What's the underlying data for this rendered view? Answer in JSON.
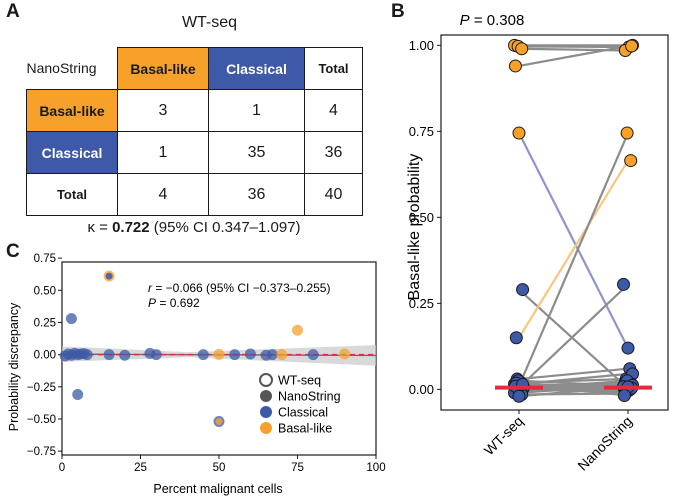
{
  "panels": {
    "a": "A",
    "b": "B",
    "c": "C"
  },
  "panel_a": {
    "column_title": "WT-seq",
    "row_title": "NanoString",
    "col_headers": [
      "Basal-like",
      "Classical",
      "Total"
    ],
    "rows": [
      {
        "label": "Basal-like",
        "values": [
          "3",
          "1",
          "4"
        ]
      },
      {
        "label": "Classical",
        "values": [
          "1",
          "35",
          "36"
        ]
      },
      {
        "label": "Total",
        "values": [
          "4",
          "36",
          "40"
        ]
      }
    ],
    "kappa_prefix": "κ = ",
    "kappa_value": "0.722",
    "kappa_ci": " (95% CI 0.347–1.097)"
  },
  "colors": {
    "basal": "#f7a12b",
    "classical": "#3d59a7",
    "mean_bar": "#e8283c",
    "refline": "#e8283c"
  },
  "chart_data": [
    {
      "id": "panel_b",
      "type": "scatter",
      "title": "P = 0.308",
      "title_p": "P",
      "title_rest": " = 0.308",
      "ylabel": "Basal-like probability",
      "categories": [
        "WT-seq",
        "NanoString"
      ],
      "ylim": [
        -0.06,
        1.03
      ],
      "yticks": [
        0,
        0.25,
        0.5,
        0.75,
        1
      ],
      "ytick_labels": [
        "0.00",
        "0.25",
        "0.50",
        "0.75",
        "1.00"
      ],
      "mean_values": [
        0.005,
        0.005
      ],
      "pairs": [
        {
          "wt": 1.0,
          "ns": 1.0,
          "line": "grey",
          "wt_type": "basal",
          "ns_type": "basal"
        },
        {
          "wt": 0.997,
          "ns": 0.995,
          "line": "grey",
          "wt_type": "basal",
          "ns_type": "basal"
        },
        {
          "wt": 0.99,
          "ns": 0.985,
          "line": "grey",
          "wt_type": "basal",
          "ns_type": "basal"
        },
        {
          "wt": 0.94,
          "ns": 0.998,
          "line": "grey",
          "wt_type": "basal",
          "ns_type": "basal"
        },
        {
          "wt": 0.745,
          "ns": 0.12,
          "line": "blue",
          "wt_type": "basal",
          "ns_type": "classical"
        },
        {
          "wt": 0.29,
          "ns": 0.003,
          "line": "grey",
          "wt_type": "classical",
          "ns_type": "classical"
        },
        {
          "wt": 0.15,
          "ns": 0.665,
          "line": "orange",
          "wt_type": "classical",
          "ns_type": "basal"
        },
        {
          "wt": 0.01,
          "ns": 0.745,
          "line": "grey",
          "wt_type": "classical",
          "ns_type": "basal"
        },
        {
          "wt": 0.005,
          "ns": 0.305,
          "line": "grey",
          "wt_type": "classical",
          "ns_type": "classical"
        },
        {
          "wt": 0.03,
          "ns": 0.06,
          "line": "grey",
          "wt_type": "classical",
          "ns_type": "classical"
        },
        {
          "wt": 0.02,
          "ns": 0.03,
          "line": "grey",
          "wt_type": "classical",
          "ns_type": "classical"
        },
        {
          "wt": 0.015,
          "ns": 0.045,
          "line": "grey",
          "wt_type": "classical",
          "ns_type": "classical"
        },
        {
          "wt": 0.025,
          "ns": 0.01,
          "line": "grey",
          "wt_type": "classical",
          "ns_type": "classical"
        },
        {
          "wt": 0.008,
          "ns": 0.02,
          "line": "grey",
          "wt_type": "classical",
          "ns_type": "classical"
        },
        {
          "wt": 0.004,
          "ns": 0.015,
          "line": "grey",
          "wt_type": "classical",
          "ns_type": "classical"
        },
        {
          "wt": 0.012,
          "ns": 0.005,
          "line": "grey",
          "wt_type": "classical",
          "ns_type": "classical"
        },
        {
          "wt": 0.001,
          "ns": 0.002,
          "line": "grey",
          "wt_type": "classical",
          "ns_type": "classical"
        },
        {
          "wt": 0.018,
          "ns": 0.001,
          "line": "grey",
          "wt_type": "classical",
          "ns_type": "classical"
        },
        {
          "wt": 0.002,
          "ns": 0.025,
          "line": "grey",
          "wt_type": "classical",
          "ns_type": "classical"
        },
        {
          "wt": 0.006,
          "ns": 0.008,
          "line": "grey",
          "wt_type": "classical",
          "ns_type": "classical"
        },
        {
          "wt": -0.005,
          "ns": 0.0,
          "line": "grey",
          "wt_type": "classical",
          "ns_type": "classical"
        },
        {
          "wt": 0.0,
          "ns": -0.008,
          "line": "grey",
          "wt_type": "classical",
          "ns_type": "classical"
        },
        {
          "wt": -0.01,
          "ns": 0.012,
          "line": "grey",
          "wt_type": "classical",
          "ns_type": "classical"
        },
        {
          "wt": 0.003,
          "ns": -0.003,
          "line": "grey",
          "wt_type": "classical",
          "ns_type": "classical"
        },
        {
          "wt": -0.015,
          "ns": -0.012,
          "line": "grey",
          "wt_type": "classical",
          "ns_type": "classical"
        },
        {
          "wt": 0.009,
          "ns": 0.004,
          "line": "grey",
          "wt_type": "classical",
          "ns_type": "classical"
        },
        {
          "wt": -0.02,
          "ns": 0.007,
          "line": "grey",
          "wt_type": "classical",
          "ns_type": "classical"
        },
        {
          "wt": 0.014,
          "ns": -0.018,
          "line": "grey",
          "wt_type": "classical",
          "ns_type": "classical"
        }
      ]
    },
    {
      "id": "panel_c",
      "type": "scatter",
      "xlabel": "Percent malignant cells",
      "ylabel": "Probability discrepancy",
      "xlim": [
        0,
        100
      ],
      "ylim": [
        -0.78,
        0.72
      ],
      "xticks": [
        0,
        25,
        50,
        75,
        100
      ],
      "xtick_labels": [
        "0",
        "25",
        "50",
        "75",
        "100"
      ],
      "yticks": [
        -0.75,
        -0.5,
        -0.25,
        0,
        0.25,
        0.5,
        0.75
      ],
      "ytick_labels": [
        "−0.75",
        "−0.50",
        "−0.25",
        "0.00",
        "0.25",
        "0.50",
        "0.75"
      ],
      "annotation_r": "r",
      "annotation_r_rest": " = −0.066 (95% CI −0.373–0.255)",
      "annotation_p": "P",
      "annotation_p_rest": " = 0.692",
      "legend": [
        {
          "label": "WT-seq",
          "kind": "wt"
        },
        {
          "label": "NanoString",
          "kind": "ns"
        },
        {
          "label": "Classical",
          "kind": "classical"
        },
        {
          "label": "Basal-like",
          "kind": "basal"
        }
      ],
      "regression": {
        "intercept": 0.004,
        "slope": -0.0001
      },
      "points": [
        {
          "x": 15,
          "y": 0.61,
          "outer": "basal",
          "inner": "classical"
        },
        {
          "x": 50,
          "y": -0.52,
          "outer": "classical",
          "inner": "basal"
        },
        {
          "x": 3,
          "y": 0.28,
          "outer": "classical",
          "inner": "classical"
        },
        {
          "x": 5,
          "y": -0.31,
          "outer": "classical",
          "inner": "classical"
        },
        {
          "x": 75,
          "y": 0.19,
          "outer": "basal",
          "inner": "basal"
        },
        {
          "x": 1,
          "y": -0.01,
          "outer": "classical",
          "inner": "classical"
        },
        {
          "x": 2,
          "y": 0.005,
          "outer": "classical",
          "inner": "classical"
        },
        {
          "x": 3,
          "y": -0.005,
          "outer": "classical",
          "inner": "classical"
        },
        {
          "x": 4,
          "y": 0.01,
          "outer": "classical",
          "inner": "classical"
        },
        {
          "x": 5,
          "y": 0.0,
          "outer": "classical",
          "inner": "classical"
        },
        {
          "x": 6,
          "y": 0.005,
          "outer": "classical",
          "inner": "classical"
        },
        {
          "x": 7,
          "y": 0.008,
          "outer": "classical",
          "inner": "classical"
        },
        {
          "x": 8,
          "y": 0.0,
          "outer": "classical",
          "inner": "classical"
        },
        {
          "x": 15,
          "y": 0.0,
          "outer": "classical",
          "inner": "classical"
        },
        {
          "x": 20,
          "y": -0.005,
          "outer": "classical",
          "inner": "classical"
        },
        {
          "x": 28,
          "y": 0.01,
          "outer": "classical",
          "inner": "classical"
        },
        {
          "x": 30,
          "y": 0.0,
          "outer": "classical",
          "inner": "classical"
        },
        {
          "x": 45,
          "y": 0.0,
          "outer": "classical",
          "inner": "classical"
        },
        {
          "x": 50,
          "y": 0.002,
          "outer": "basal",
          "inner": "basal"
        },
        {
          "x": 55,
          "y": 0.0,
          "outer": "classical",
          "inner": "classical"
        },
        {
          "x": 60,
          "y": 0.005,
          "outer": "classical",
          "inner": "classical"
        },
        {
          "x": 65,
          "y": -0.005,
          "outer": "classical",
          "inner": "classical"
        },
        {
          "x": 67,
          "y": 0.0,
          "outer": "classical",
          "inner": "classical"
        },
        {
          "x": 70,
          "y": 0.0,
          "outer": "basal",
          "inner": "basal"
        },
        {
          "x": 80,
          "y": 0.0,
          "outer": "classical",
          "inner": "classical"
        },
        {
          "x": 90,
          "y": 0.005,
          "outer": "basal",
          "inner": "basal"
        }
      ]
    }
  ]
}
